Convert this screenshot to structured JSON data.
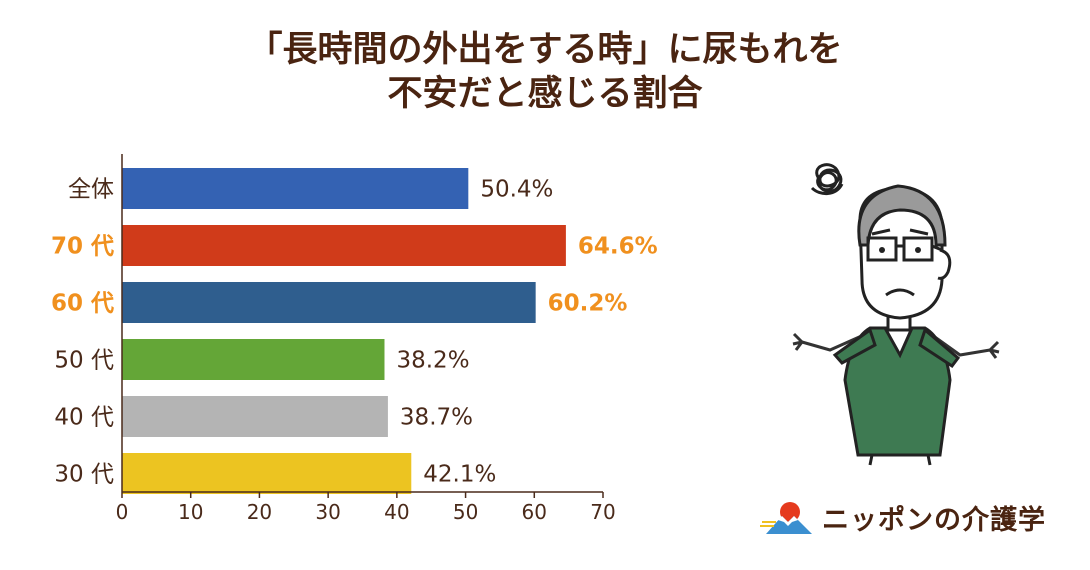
{
  "title": {
    "line1": "「長時間の外出をする時」に尿もれを",
    "line2": "不安だと感じる割合"
  },
  "chart_data": {
    "type": "bar",
    "orientation": "horizontal",
    "categories": [
      "全体",
      "70 代",
      "60 代",
      "50 代",
      "40 代",
      "30 代"
    ],
    "values": [
      50.4,
      64.6,
      60.2,
      38.2,
      38.7,
      42.1
    ],
    "value_labels": [
      "50.4%",
      "64.6%",
      "60.2%",
      "38.2%",
      "38.7%",
      "42.1%"
    ],
    "bar_colors": [
      "#3462b3",
      "#d03b1a",
      "#2f5e8e",
      "#64a637",
      "#b4b4b4",
      "#ecc421"
    ],
    "highlight_categories": [
      "70 代",
      "60 代"
    ],
    "highlight_color": "#f0901e",
    "xlim": [
      0,
      70
    ],
    "xticks": [
      0,
      10,
      20,
      30,
      40,
      50,
      60,
      70
    ],
    "title": "",
    "xlabel": "",
    "ylabel": "",
    "grid": false
  },
  "brand": {
    "name": "ニッポンの介護学"
  }
}
